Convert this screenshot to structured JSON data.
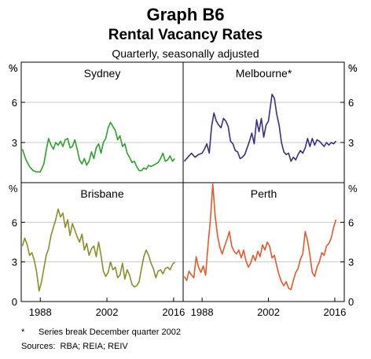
{
  "header": {
    "title": "Graph B6",
    "subtitle": "Rental Vacancy Rates",
    "note": "Quarterly, seasonally adjusted"
  },
  "footnotes": {
    "marker": "*",
    "series_break": "Series break December quarter 2002",
    "sources_label": "Sources:",
    "sources": "RBA; REIA; REIV"
  },
  "chart_data": [
    {
      "type": "line",
      "title": "Sydney",
      "color": "#2ca02c",
      "ylabel_left": "%",
      "ylabel_right": "%",
      "ylim": [
        0,
        9
      ],
      "yticks": [
        3,
        6
      ],
      "xlim": [
        1984,
        2018
      ],
      "xticks": [
        1988,
        2002,
        2016
      ],
      "grid": true,
      "x": [
        1984.25,
        1985,
        1985.75,
        1986.5,
        1987.25,
        1988,
        1988.75,
        1989.25,
        1989.75,
        1990.25,
        1990.75,
        1991.25,
        1991.75,
        1992.25,
        1992.75,
        1993.25,
        1993.75,
        1994.25,
        1994.75,
        1995.25,
        1995.75,
        1996.25,
        1996.75,
        1997.25,
        1997.75,
        1998.25,
        1998.75,
        1999.25,
        1999.75,
        2000.25,
        2000.75,
        2001.25,
        2001.75,
        2002.25,
        2002.75,
        2003.25,
        2003.75,
        2004.25,
        2004.75,
        2005.25,
        2005.75,
        2006.25,
        2006.75,
        2007.25,
        2007.75,
        2008.25,
        2008.75,
        2009.25,
        2009.75,
        2010.25,
        2010.75,
        2011.25,
        2011.75,
        2012.25,
        2012.75,
        2013.25,
        2013.75,
        2014.25,
        2014.75,
        2015.25,
        2015.75,
        2016.25
      ],
      "values": [
        2.5,
        1.7,
        1.2,
        0.9,
        0.8,
        0.8,
        1.4,
        2.4,
        3.3,
        2.8,
        2.5,
        3.0,
        2.8,
        3.1,
        2.7,
        3.2,
        3.3,
        2.6,
        2.7,
        3.2,
        2.5,
        1.7,
        1.4,
        1.8,
        1.3,
        1.6,
        2.3,
        1.8,
        2.6,
        2.9,
        2.2,
        3.0,
        3.3,
        4.1,
        4.5,
        4.2,
        3.9,
        3.2,
        3.5,
        2.7,
        2.9,
        2.2,
        1.9,
        1.5,
        1.6,
        1.2,
        0.9,
        0.9,
        1.1,
        1.0,
        1.3,
        1.2,
        1.3,
        1.4,
        1.5,
        1.8,
        2.2,
        1.6,
        1.7,
        2.0,
        1.6,
        1.8
      ]
    },
    {
      "type": "line",
      "title": "Melbourne*",
      "color": "#3c2f7d",
      "ylabel_left": "%",
      "ylabel_right": "%",
      "ylim": [
        0,
        9
      ],
      "yticks": [
        3,
        6
      ],
      "xlim": [
        1984,
        2018
      ],
      "xticks": [
        1988,
        2002,
        2016
      ],
      "grid": true,
      "x": [
        1984.25,
        1985,
        1985.75,
        1986.5,
        1987.25,
        1988,
        1988.5,
        1989,
        1989.5,
        1990,
        1990.5,
        1991,
        1991.5,
        1992,
        1992.5,
        1993,
        1993.5,
        1994,
        1994.5,
        1995,
        1995.5,
        1996,
        1996.5,
        1997,
        1997.5,
        1998,
        1998.5,
        1999,
        1999.5,
        2000,
        2000.5,
        2001,
        2001.5,
        2002,
        2002.75,
        2003.25,
        2003.75,
        2004.25,
        2004.75,
        2005.25,
        2005.75,
        2006.25,
        2006.75,
        2007.25,
        2007.75,
        2008.25,
        2008.75,
        2009.25,
        2009.75,
        2010.25,
        2010.75,
        2011.25,
        2011.75,
        2012.25,
        2012.75,
        2013.25,
        2013.75,
        2014.25,
        2014.75,
        2015.25,
        2015.75,
        2016.25
      ],
      "values": [
        1.6,
        1.9,
        2.2,
        1.9,
        2.1,
        2.2,
        2.5,
        2.9,
        2.2,
        4.2,
        5.2,
        4.6,
        4.3,
        4.1,
        4.8,
        4.6,
        4.2,
        3.1,
        2.9,
        2.4,
        2.3,
        1.8,
        1.9,
        2.1,
        2.6,
        3.1,
        3.7,
        2.9,
        4.7,
        3.8,
        4.8,
        3.4,
        4.3,
        4.6,
        6.6,
        6.3,
        5.1,
        4.3,
        3.0,
        2.3,
        2.1,
        2.2,
        1.6,
        1.9,
        1.7,
        2.1,
        2.4,
        2.2,
        2.6,
        3.3,
        2.7,
        3.3,
        2.8,
        3.2,
        3.1,
        2.9,
        2.7,
        3.0,
        2.8,
        3.0,
        2.9,
        3.1
      ]
    },
    {
      "type": "line",
      "title": "Brisbane",
      "color": "#8b8d2a",
      "ylabel_left": "%",
      "ylabel_right": "",
      "ylim": [
        0,
        9
      ],
      "yticks": [
        0,
        3,
        6
      ],
      "xlim": [
        1984,
        2018
      ],
      "xticks": [
        1988,
        2002,
        2016
      ],
      "grid": true,
      "x": [
        1984.25,
        1984.75,
        1985.25,
        1985.75,
        1986.25,
        1986.75,
        1987.25,
        1987.75,
        1988.25,
        1988.75,
        1989.25,
        1989.75,
        1990.25,
        1990.75,
        1991.25,
        1991.75,
        1992.25,
        1992.75,
        1993.25,
        1993.75,
        1994.25,
        1994.75,
        1995.25,
        1995.75,
        1996.25,
        1996.75,
        1997.25,
        1997.75,
        1998.25,
        1998.75,
        1999.25,
        1999.75,
        2000.25,
        2000.75,
        2001.25,
        2001.75,
        2002.25,
        2002.75,
        2003.25,
        2003.75,
        2004.25,
        2004.75,
        2005.25,
        2005.75,
        2006.25,
        2006.75,
        2007.25,
        2007.75,
        2008.25,
        2008.75,
        2009.25,
        2009.75,
        2010.25,
        2010.75,
        2011.25,
        2011.75,
        2012.25,
        2012.75,
        2013.25,
        2013.75,
        2014.25,
        2014.75,
        2015.25,
        2015.75,
        2016.25
      ],
      "values": [
        4.2,
        4.8,
        4.3,
        3.5,
        3.7,
        3.1,
        2.2,
        0.8,
        1.5,
        2.5,
        3.5,
        4.0,
        5.0,
        5.6,
        6.2,
        7.0,
        6.4,
        6.7,
        5.6,
        6.2,
        5.0,
        5.9,
        5.4,
        4.9,
        4.5,
        5.1,
        3.9,
        4.4,
        3.5,
        4.0,
        4.2,
        3.4,
        4.5,
        3.5,
        2.3,
        1.9,
        2.2,
        3.0,
        2.4,
        2.6,
        1.8,
        2.0,
        2.9,
        1.7,
        2.4,
        2.0,
        1.3,
        1.1,
        1.2,
        1.5,
        2.5,
        3.4,
        3.9,
        3.5,
        2.9,
        2.5,
        1.8,
        2.3,
        2.4,
        2.1,
        2.5,
        2.6,
        2.4,
        2.8,
        3.0
      ]
    },
    {
      "type": "line",
      "title": "Perth",
      "color": "#e2592b",
      "ylabel_left": "",
      "ylabel_right": "%",
      "ylim": [
        0,
        9
      ],
      "yticks": [
        0,
        3,
        6
      ],
      "xlim": [
        1984,
        2018
      ],
      "xticks": [
        1988,
        2002,
        2016
      ],
      "grid": true,
      "x": [
        1984.25,
        1984.75,
        1985.25,
        1985.75,
        1986.25,
        1986.75,
        1987.25,
        1987.75,
        1988.25,
        1988.75,
        1989.25,
        1989.75,
        1990.25,
        1990.75,
        1991.25,
        1991.75,
        1992.25,
        1992.75,
        1993.25,
        1993.75,
        1994.25,
        1994.75,
        1995.25,
        1995.75,
        1996.25,
        1996.75,
        1997.25,
        1997.75,
        1998.25,
        1998.75,
        1999.25,
        1999.75,
        2000.25,
        2000.75,
        2001.25,
        2001.75,
        2002.25,
        2002.75,
        2003.25,
        2003.75,
        2004.25,
        2004.75,
        2005.25,
        2005.75,
        2006.25,
        2006.75,
        2007.25,
        2007.75,
        2008.25,
        2008.75,
        2009.25,
        2009.75,
        2010.25,
        2010.75,
        2011.25,
        2011.75,
        2012.25,
        2012.75,
        2013.25,
        2013.75,
        2014.25,
        2014.75,
        2015.25,
        2015.75,
        2016.25
      ],
      "values": [
        1.9,
        1.6,
        2.3,
        2.0,
        1.8,
        3.4,
        2.6,
        2.2,
        2.7,
        2.0,
        4.3,
        6.2,
        8.9,
        6.5,
        5.0,
        4.1,
        3.6,
        4.2,
        4.7,
        5.3,
        4.2,
        3.8,
        3.6,
        3.9,
        3.3,
        3.9,
        3.1,
        2.6,
        2.9,
        3.5,
        3.1,
        3.8,
        3.4,
        4.3,
        3.9,
        4.5,
        4.2,
        3.3,
        3.5,
        2.7,
        2.0,
        1.5,
        1.2,
        1.5,
        1.0,
        0.9,
        1.6,
        2.2,
        2.5,
        3.2,
        3.6,
        5.3,
        4.6,
        3.5,
        2.2,
        1.9,
        2.6,
        3.0,
        3.7,
        3.5,
        4.2,
        4.4,
        4.8,
        5.6,
        6.2
      ]
    }
  ]
}
